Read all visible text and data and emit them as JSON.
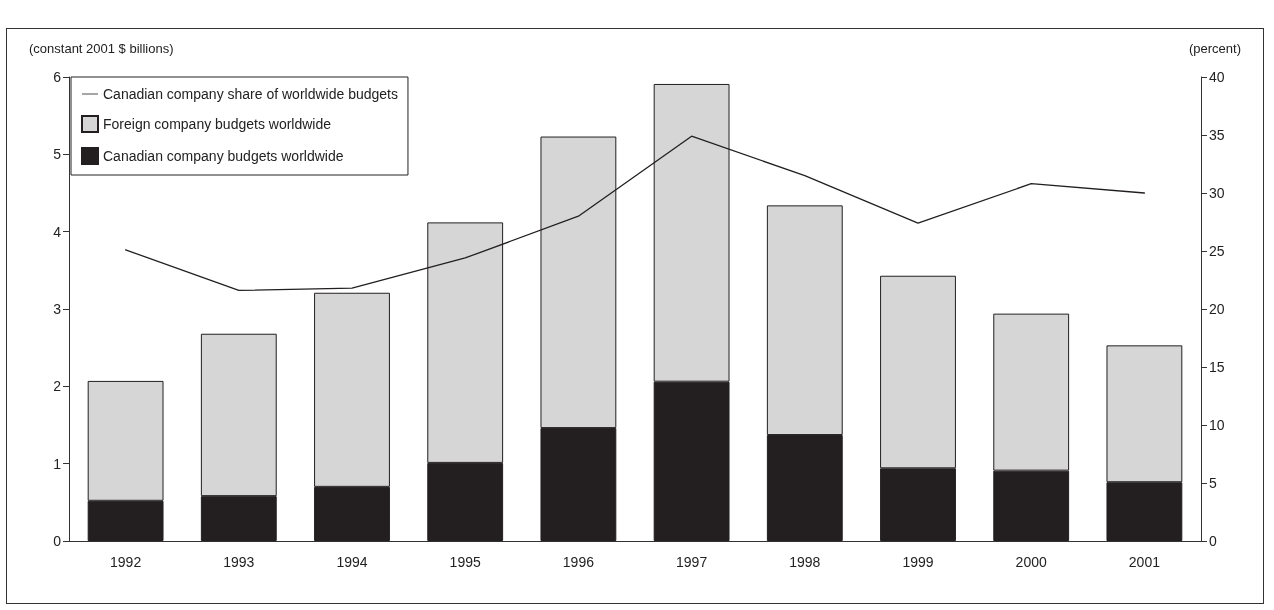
{
  "chart_data": {
    "type": "bar",
    "stacked": true,
    "ylabel": "(constant 2001 $ billions)",
    "y2label": "(percent)",
    "categories": [
      "1992",
      "1993",
      "1994",
      "1995",
      "1996",
      "1997",
      "1998",
      "1999",
      "2000",
      "2001"
    ],
    "series": [
      {
        "name": "Canadian company budgets worldwide",
        "color": "#231f20",
        "values": [
          0.52,
          0.58,
          0.7,
          1.01,
          1.46,
          2.06,
          1.37,
          0.94,
          0.91,
          0.76
        ]
      },
      {
        "name": "Foreign company budgets worldwide",
        "color": "#d6d6d6",
        "values": [
          1.55,
          2.1,
          2.51,
          3.11,
          3.77,
          3.85,
          2.97,
          2.49,
          2.03,
          1.77
        ]
      },
      {
        "name": "Canadian company share of worldwide budgets",
        "type": "line",
        "axis": "y2",
        "color": "#231f20",
        "values": [
          25.1,
          21.6,
          21.8,
          24.4,
          28.0,
          34.9,
          31.5,
          27.4,
          30.8,
          30.0
        ]
      }
    ],
    "ylim": [
      0,
      6
    ],
    "yticks": [
      0,
      1,
      2,
      3,
      4,
      5,
      6
    ],
    "y2lim": [
      0,
      40
    ],
    "y2ticks": [
      0,
      5,
      10,
      15,
      20,
      25,
      30,
      35,
      40
    ],
    "grid": false,
    "legend": "top left",
    "marker": "none",
    "line_style": "solid"
  }
}
